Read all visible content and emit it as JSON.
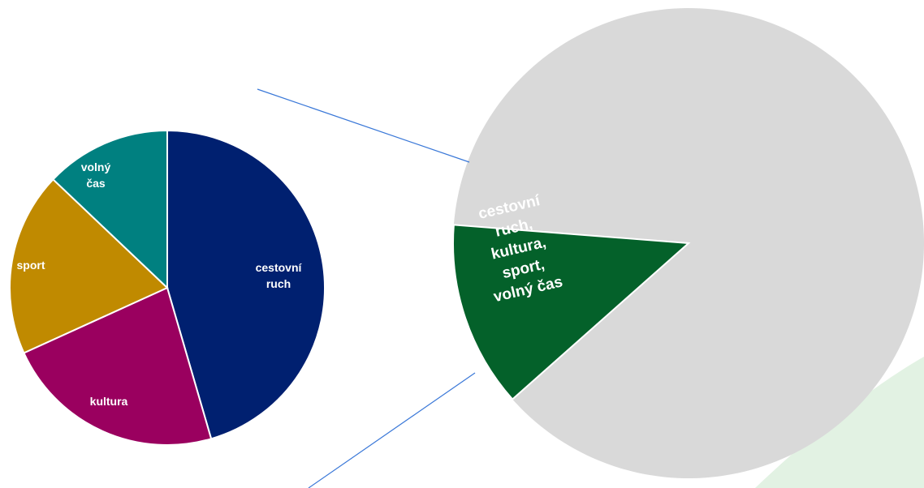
{
  "chart_data": [
    {
      "type": "pie",
      "title": "",
      "slices": [
        {
          "label": "cestovní ruch",
          "value": 45.5,
          "color": "#002070"
        },
        {
          "label": "kultura",
          "value": 22.7,
          "color": "#9A005F"
        },
        {
          "label": "sport",
          "value": 18.9,
          "color": "#C08A00"
        },
        {
          "label": "volný čas",
          "value": 12.9,
          "color": "#008080"
        }
      ]
    },
    {
      "type": "pie",
      "title": "",
      "slices": [
        {
          "label": "cestovní ruch, kultura, sport, volný čas",
          "value": 12.8,
          "color": "#04612A"
        },
        {
          "label": "",
          "value": 87.2,
          "color": "#D9D9D9"
        }
      ]
    }
  ],
  "labels": {
    "small": [
      {
        "lines": [
          "cestovní",
          "ruch"
        ]
      },
      {
        "lines": [
          "kultura"
        ]
      },
      {
        "lines": [
          "sport"
        ]
      },
      {
        "lines": [
          "volný",
          "čas"
        ]
      }
    ],
    "big": [
      {
        "lines": [
          "cestovní",
          "ruch,",
          "kultura,",
          "sport,",
          "volný čas"
        ]
      }
    ]
  },
  "colors": {
    "connector": "#3A78D8",
    "background_shape": "#E2F2E3",
    "slice_border": "#ffffff"
  }
}
